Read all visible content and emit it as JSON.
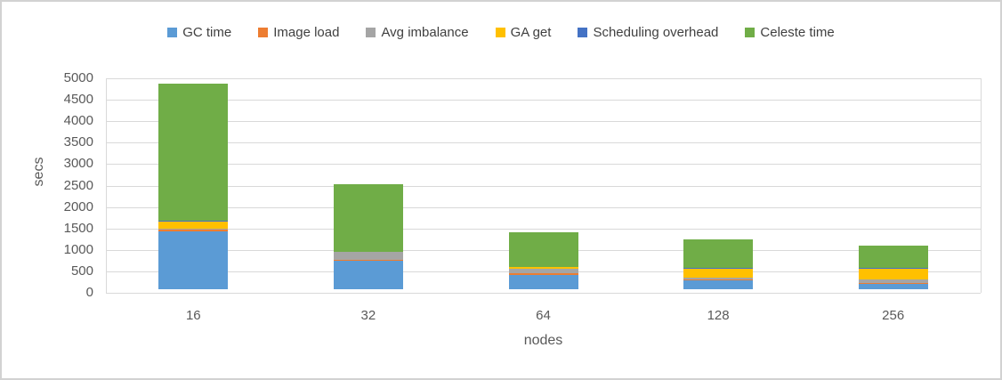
{
  "chart_data": {
    "type": "bar",
    "stacked": true,
    "title": "",
    "xlabel": "nodes",
    "ylabel": "secs",
    "ylim": [
      0,
      5000
    ],
    "ytick_step": 500,
    "yticks": [
      0,
      500,
      1000,
      1500,
      2000,
      2500,
      3000,
      3500,
      4000,
      4500,
      5000
    ],
    "categories": [
      "16",
      "32",
      "64",
      "128",
      "256"
    ],
    "series": [
      {
        "name": "GC time",
        "color": "#5B9BD5",
        "values": [
          1350,
          655,
          325,
          215,
          120
        ]
      },
      {
        "name": "Image load",
        "color": "#ED7D31",
        "values": [
          40,
          25,
          40,
          15,
          35
        ]
      },
      {
        "name": "Avg imbalance",
        "color": "#A5A5A5",
        "values": [
          20,
          185,
          105,
          30,
          65
        ]
      },
      {
        "name": "GA get",
        "color": "#FFC000",
        "values": [
          170,
          0,
          40,
          210,
          250
        ]
      },
      {
        "name": "Scheduling overhead",
        "color": "#4472C4",
        "values": [
          10,
          0,
          5,
          35,
          35
        ]
      },
      {
        "name": "Celeste time",
        "color": "#70AD47",
        "values": [
          3200,
          1585,
          820,
          660,
          505
        ]
      }
    ],
    "totals": [
      4790,
      2450,
      1335,
      1165,
      1010
    ],
    "legend_position": "top",
    "grid": true,
    "gridline_color": "#D9D9D9",
    "text_color": "#595959"
  }
}
